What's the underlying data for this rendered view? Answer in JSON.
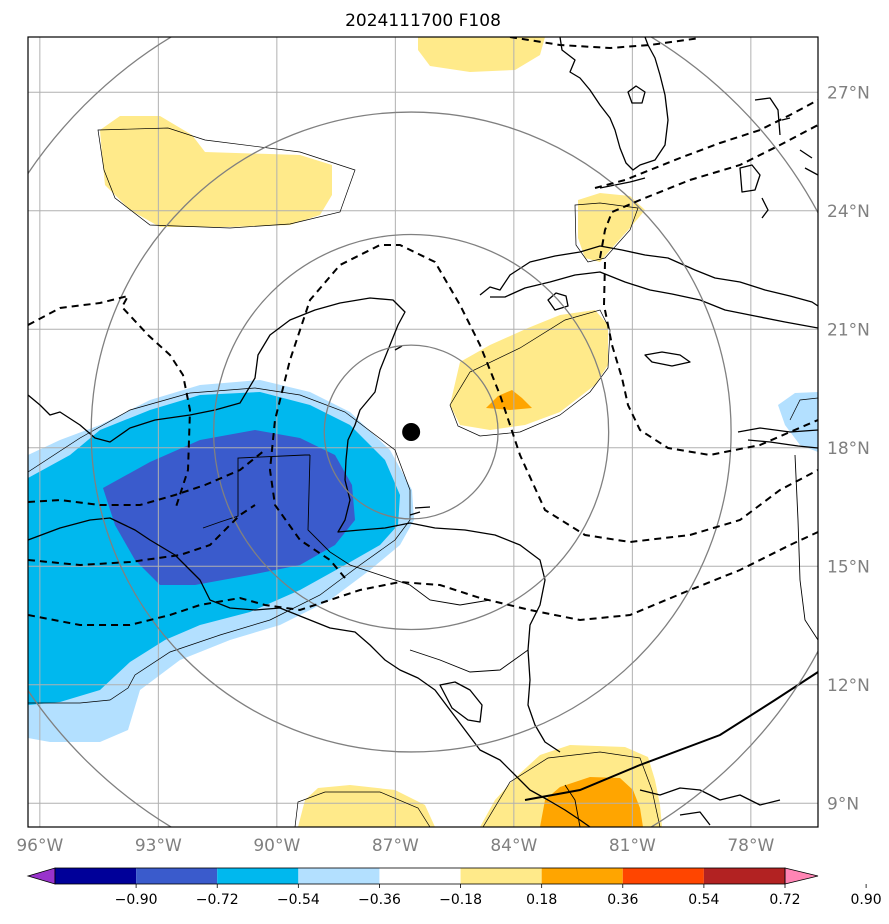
{
  "title": "2024111700 F108",
  "map": {
    "lon_range": [
      -96.3,
      -76.3
    ],
    "lat_range": [
      8.4,
      28.4
    ],
    "lon_ticks": [
      {
        "value": -96,
        "label": "96°W"
      },
      {
        "value": -93,
        "label": "93°W"
      },
      {
        "value": -90,
        "label": "90°W"
      },
      {
        "value": -87,
        "label": "87°W"
      },
      {
        "value": -84,
        "label": "84°W"
      },
      {
        "value": -81,
        "label": "81°W"
      },
      {
        "value": -78,
        "label": "78°W"
      }
    ],
    "lat_ticks": [
      {
        "value": 27,
        "label": "27°N"
      },
      {
        "value": 24,
        "label": "24°N"
      },
      {
        "value": 21,
        "label": "21°N"
      },
      {
        "value": 18,
        "label": "18°N"
      },
      {
        "value": 15,
        "label": "15°N"
      },
      {
        "value": 12,
        "label": "12°N"
      },
      {
        "value": 9,
        "label": "9°N"
      }
    ],
    "center_marker": {
      "lon": -86.6,
      "lat": 18.4
    },
    "grid": true,
    "range_rings_deg": [
      2.2,
      5.0,
      8.1,
      11.7
    ]
  },
  "colorbar": {
    "labels": [
      "−0.90",
      "−0.72",
      "−0.54",
      "−0.36",
      "−0.18",
      "0.18",
      "0.36",
      "0.54",
      "0.72",
      "0.90"
    ],
    "colors": [
      "#9933cc",
      "#000099",
      "#3a5bcc",
      "#00b8ee",
      "#b3e0ff",
      "#ffffff",
      "#ffea8a",
      "#ffa500",
      "#ff4500",
      "#b22222",
      "#ff85b4"
    ]
  },
  "colors": {
    "yellow": "#ffea8a",
    "orange": "#ffa500",
    "light_blue": "#b3e0ff",
    "mid_blue": "#00b8ee",
    "dark_blue": "#3a5bcc"
  }
}
